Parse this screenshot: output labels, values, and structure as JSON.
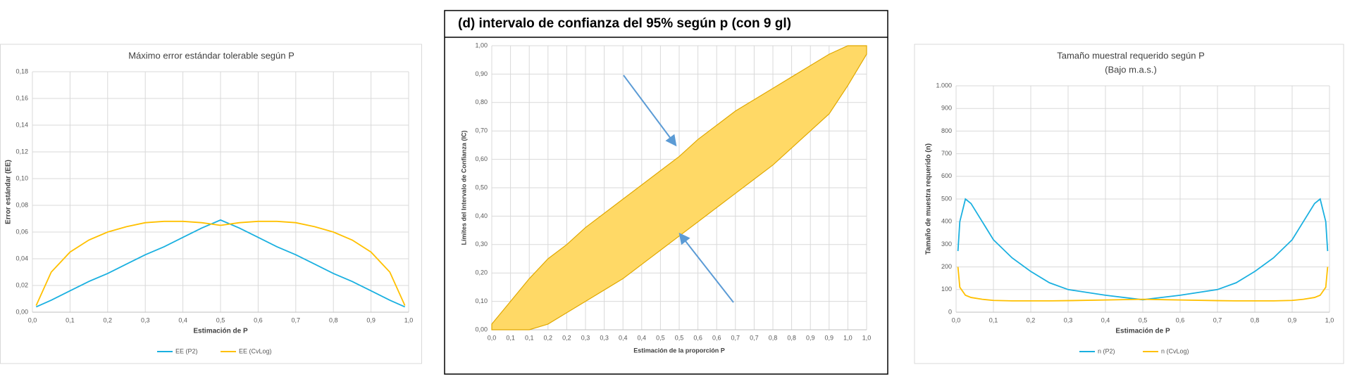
{
  "chart_data": [
    {
      "type": "line",
      "title": "Máximo error estándar tolerable según P",
      "x_label": "Estimación de P",
      "y_label": "Error estándar (EE)",
      "x": [
        0.01,
        0.05,
        0.1,
        0.15,
        0.2,
        0.25,
        0.3,
        0.35,
        0.4,
        0.45,
        0.5,
        0.55,
        0.6,
        0.65,
        0.7,
        0.75,
        0.8,
        0.85,
        0.9,
        0.95,
        0.99
      ],
      "series": [
        {
          "name": "EE (P2)",
          "color": "#1ab0e0",
          "values": [
            0.004,
            0.009,
            0.016,
            0.023,
            0.029,
            0.036,
            0.043,
            0.049,
            0.056,
            0.063,
            0.069,
            0.063,
            0.056,
            0.049,
            0.043,
            0.036,
            0.029,
            0.023,
            0.016,
            0.009,
            0.004
          ]
        },
        {
          "name": "EE (CvLog)",
          "color": "#ffc000",
          "values": [
            0.005,
            0.03,
            0.045,
            0.054,
            0.06,
            0.064,
            0.067,
            0.068,
            0.068,
            0.067,
            0.065,
            0.067,
            0.068,
            0.068,
            0.067,
            0.064,
            0.06,
            0.054,
            0.045,
            0.03,
            0.005
          ]
        }
      ],
      "xlim": [
        0,
        1
      ],
      "ylim": [
        0,
        0.18
      ],
      "xticks": [
        {
          "value": 0,
          "label": "0,0"
        },
        {
          "value": 0.1,
          "label": "0,1"
        },
        {
          "value": 0.2,
          "label": "0,2"
        },
        {
          "value": 0.3,
          "label": "0,3"
        },
        {
          "value": 0.4,
          "label": "0,4"
        },
        {
          "value": 0.5,
          "label": "0,5"
        },
        {
          "value": 0.6,
          "label": "0,6"
        },
        {
          "value": 0.7,
          "label": "0,7"
        },
        {
          "value": 0.8,
          "label": "0,8"
        },
        {
          "value": 0.9,
          "label": "0,9"
        },
        {
          "value": 1,
          "label": "1,0"
        }
      ],
      "yticks": [
        {
          "value": 0,
          "label": "0,00"
        },
        {
          "value": 0.02,
          "label": "0,02"
        },
        {
          "value": 0.04,
          "label": "0,04"
        },
        {
          "value": 0.06,
          "label": "0,06"
        },
        {
          "value": 0.08,
          "label": "0,08"
        },
        {
          "value": 0.1,
          "label": "0,10"
        },
        {
          "value": 0.12,
          "label": "0,12"
        },
        {
          "value": 0.14,
          "label": "0,14"
        },
        {
          "value": 0.16,
          "label": "0,16"
        },
        {
          "value": 0.18,
          "label": "0,18"
        }
      ],
      "grid": true,
      "legend": "bottom"
    },
    {
      "type": "band",
      "title": "(d) intervalo de confianza del 95% según p (con 9 gl)",
      "x_label": "Estimación de la proporción P",
      "y_label": "Límites del Intervalo de Confianza (IC)",
      "x": [
        0,
        0.05,
        0.1,
        0.15,
        0.2,
        0.25,
        0.3,
        0.35,
        0.4,
        0.45,
        0.5,
        0.55,
        0.6,
        0.65,
        0.7,
        0.75,
        0.8,
        0.85,
        0.9,
        0.95,
        1
      ],
      "upper": [
        0.02,
        0.1,
        0.18,
        0.25,
        0.3,
        0.36,
        0.41,
        0.46,
        0.51,
        0.56,
        0.61,
        0.67,
        0.72,
        0.77,
        0.81,
        0.85,
        0.89,
        0.93,
        0.97,
        1,
        1
      ],
      "lower": [
        0,
        0,
        0,
        0.02,
        0.06,
        0.1,
        0.14,
        0.18,
        0.23,
        0.28,
        0.33,
        0.38,
        0.43,
        0.48,
        0.53,
        0.58,
        0.64,
        0.7,
        0.76,
        0.86,
        0.97
      ],
      "color": "#ffd966",
      "line_color": "#e0a800",
      "xlim": [
        0,
        1
      ],
      "ylim": [
        0,
        1
      ],
      "xticks": [
        {
          "value": 0,
          "label": "0,0"
        },
        {
          "value": 0.05,
          "label": "0,1"
        },
        {
          "value": 0.1,
          "label": "0,1"
        },
        {
          "value": 0.15,
          "label": "0,2"
        },
        {
          "value": 0.2,
          "label": "0,2"
        },
        {
          "value": 0.25,
          "label": "0,3"
        },
        {
          "value": 0.3,
          "label": "0,3"
        },
        {
          "value": 0.35,
          "label": "0,4"
        },
        {
          "value": 0.4,
          "label": "0,4"
        },
        {
          "value": 0.45,
          "label": "0,5"
        },
        {
          "value": 0.5,
          "label": "0,5"
        },
        {
          "value": 0.55,
          "label": "0,6"
        },
        {
          "value": 0.6,
          "label": "0,6"
        },
        {
          "value": 0.65,
          "label": "0,7"
        },
        {
          "value": 0.7,
          "label": "0,7"
        },
        {
          "value": 0.75,
          "label": "0,8"
        },
        {
          "value": 0.8,
          "label": "0,8"
        },
        {
          "value": 0.85,
          "label": "0,9"
        },
        {
          "value": 0.9,
          "label": "0,9"
        },
        {
          "value": 0.95,
          "label": "1,0"
        },
        {
          "value": 1,
          "label": "1,0"
        }
      ],
      "yticks": [
        {
          "value": 0,
          "label": "0,00"
        },
        {
          "value": 0.1,
          "label": "0,10"
        },
        {
          "value": 0.2,
          "label": "0,20"
        },
        {
          "value": 0.3,
          "label": "0,30"
        },
        {
          "value": 0.4,
          "label": "0,40"
        },
        {
          "value": 0.5,
          "label": "0,50"
        },
        {
          "value": 0.6,
          "label": "0,60"
        },
        {
          "value": 0.7,
          "label": "0,70"
        },
        {
          "value": 0.8,
          "label": "0,80"
        },
        {
          "value": 0.9,
          "label": "0,90"
        },
        {
          "value": 1,
          "label": "1,00"
        }
      ],
      "grid": true
    },
    {
      "type": "line",
      "title": "Tamaño muestral requerido según P",
      "subtitle": "(Bajo m.a.s.)",
      "x_label": "Estimación de P",
      "y_label": "Tamaño de muestra requerido (n)",
      "x": [
        0.005,
        0.01,
        0.025,
        0.04,
        0.07,
        0.1,
        0.15,
        0.2,
        0.25,
        0.3,
        0.4,
        0.5,
        0.6,
        0.7,
        0.75,
        0.8,
        0.85,
        0.9,
        0.93,
        0.96,
        0.975,
        0.99,
        0.995
      ],
      "series": [
        {
          "name": "n (P2)",
          "color": "#1ab0e0",
          "values": [
            270,
            400,
            500,
            480,
            400,
            320,
            240,
            180,
            130,
            100,
            75,
            55,
            75,
            100,
            130,
            180,
            240,
            320,
            400,
            480,
            500,
            400,
            270
          ]
        },
        {
          "name": "n (CvLog)",
          "color": "#ffc000",
          "values": [
            200,
            110,
            75,
            65,
            57,
            52,
            50,
            50,
            50,
            51,
            54,
            57,
            54,
            51,
            50,
            50,
            50,
            52,
            57,
            65,
            75,
            110,
            200
          ]
        }
      ],
      "xlim": [
        0,
        1
      ],
      "ylim": [
        0,
        1000
      ],
      "xticks": [
        {
          "value": 0,
          "label": "0,0"
        },
        {
          "value": 0.1,
          "label": "0,1"
        },
        {
          "value": 0.2,
          "label": "0,2"
        },
        {
          "value": 0.3,
          "label": "0,3"
        },
        {
          "value": 0.4,
          "label": "0,4"
        },
        {
          "value": 0.5,
          "label": "0,5"
        },
        {
          "value": 0.6,
          "label": "0,6"
        },
        {
          "value": 0.7,
          "label": "0,7"
        },
        {
          "value": 0.8,
          "label": "0,8"
        },
        {
          "value": 0.9,
          "label": "0,9"
        },
        {
          "value": 1,
          "label": "1,0"
        }
      ],
      "yticks": [
        0,
        100,
        200,
        300,
        400,
        500,
        600,
        700,
        800,
        900,
        {
          "value": 1000,
          "label": "1.000"
        }
      ],
      "grid": true,
      "legend": "bottom"
    }
  ]
}
